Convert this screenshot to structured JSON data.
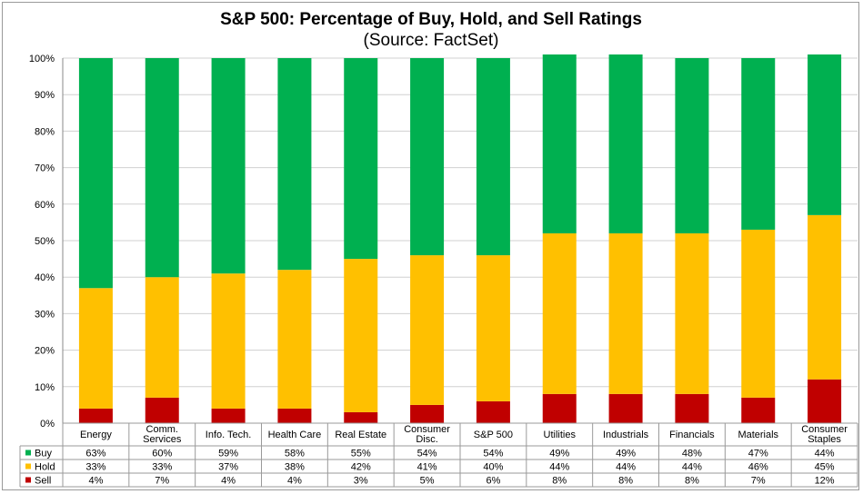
{
  "chart_data": {
    "type": "bar",
    "stacked": true,
    "title": "S&P 500: Percentage of Buy, Hold, and Sell Ratings",
    "subtitle": "(Source: FactSet)",
    "ylim": [
      0,
      100
    ],
    "yticks": [
      "0%",
      "10%",
      "20%",
      "30%",
      "40%",
      "50%",
      "60%",
      "70%",
      "80%",
      "90%",
      "100%"
    ],
    "grid": true,
    "legend": "data-table",
    "categories": [
      [
        "Energy"
      ],
      [
        "Comm.",
        "Services"
      ],
      [
        "Info. Tech."
      ],
      [
        "Health Care"
      ],
      [
        "Real Estate"
      ],
      [
        "Consumer",
        "Disc."
      ],
      [
        "S&P 500"
      ],
      [
        "Utilities"
      ],
      [
        "Industrials"
      ],
      [
        "Financials"
      ],
      [
        "Materials"
      ],
      [
        "Consumer",
        "Staples"
      ]
    ],
    "series": [
      {
        "name": "Sell",
        "color": "#c00000",
        "values": [
          4,
          7,
          4,
          4,
          3,
          5,
          6,
          8,
          8,
          8,
          7,
          12
        ],
        "labels": [
          "4%",
          "7%",
          "4%",
          "4%",
          "3%",
          "5%",
          "6%",
          "8%",
          "8%",
          "8%",
          "7%",
          "12%"
        ]
      },
      {
        "name": "Hold",
        "color": "#ffc000",
        "values": [
          33,
          33,
          37,
          38,
          42,
          41,
          40,
          44,
          44,
          44,
          46,
          45
        ],
        "labels": [
          "33%",
          "33%",
          "37%",
          "38%",
          "42%",
          "41%",
          "40%",
          "44%",
          "44%",
          "44%",
          "46%",
          "45%"
        ]
      },
      {
        "name": "Buy",
        "color": "#00b050",
        "values": [
          63,
          60,
          59,
          58,
          55,
          54,
          54,
          49,
          49,
          48,
          47,
          44
        ],
        "labels": [
          "63%",
          "60%",
          "59%",
          "58%",
          "55%",
          "54%",
          "54%",
          "49%",
          "49%",
          "48%",
          "47%",
          "44%"
        ]
      }
    ],
    "table_order": [
      "Buy",
      "Hold",
      "Sell"
    ]
  }
}
